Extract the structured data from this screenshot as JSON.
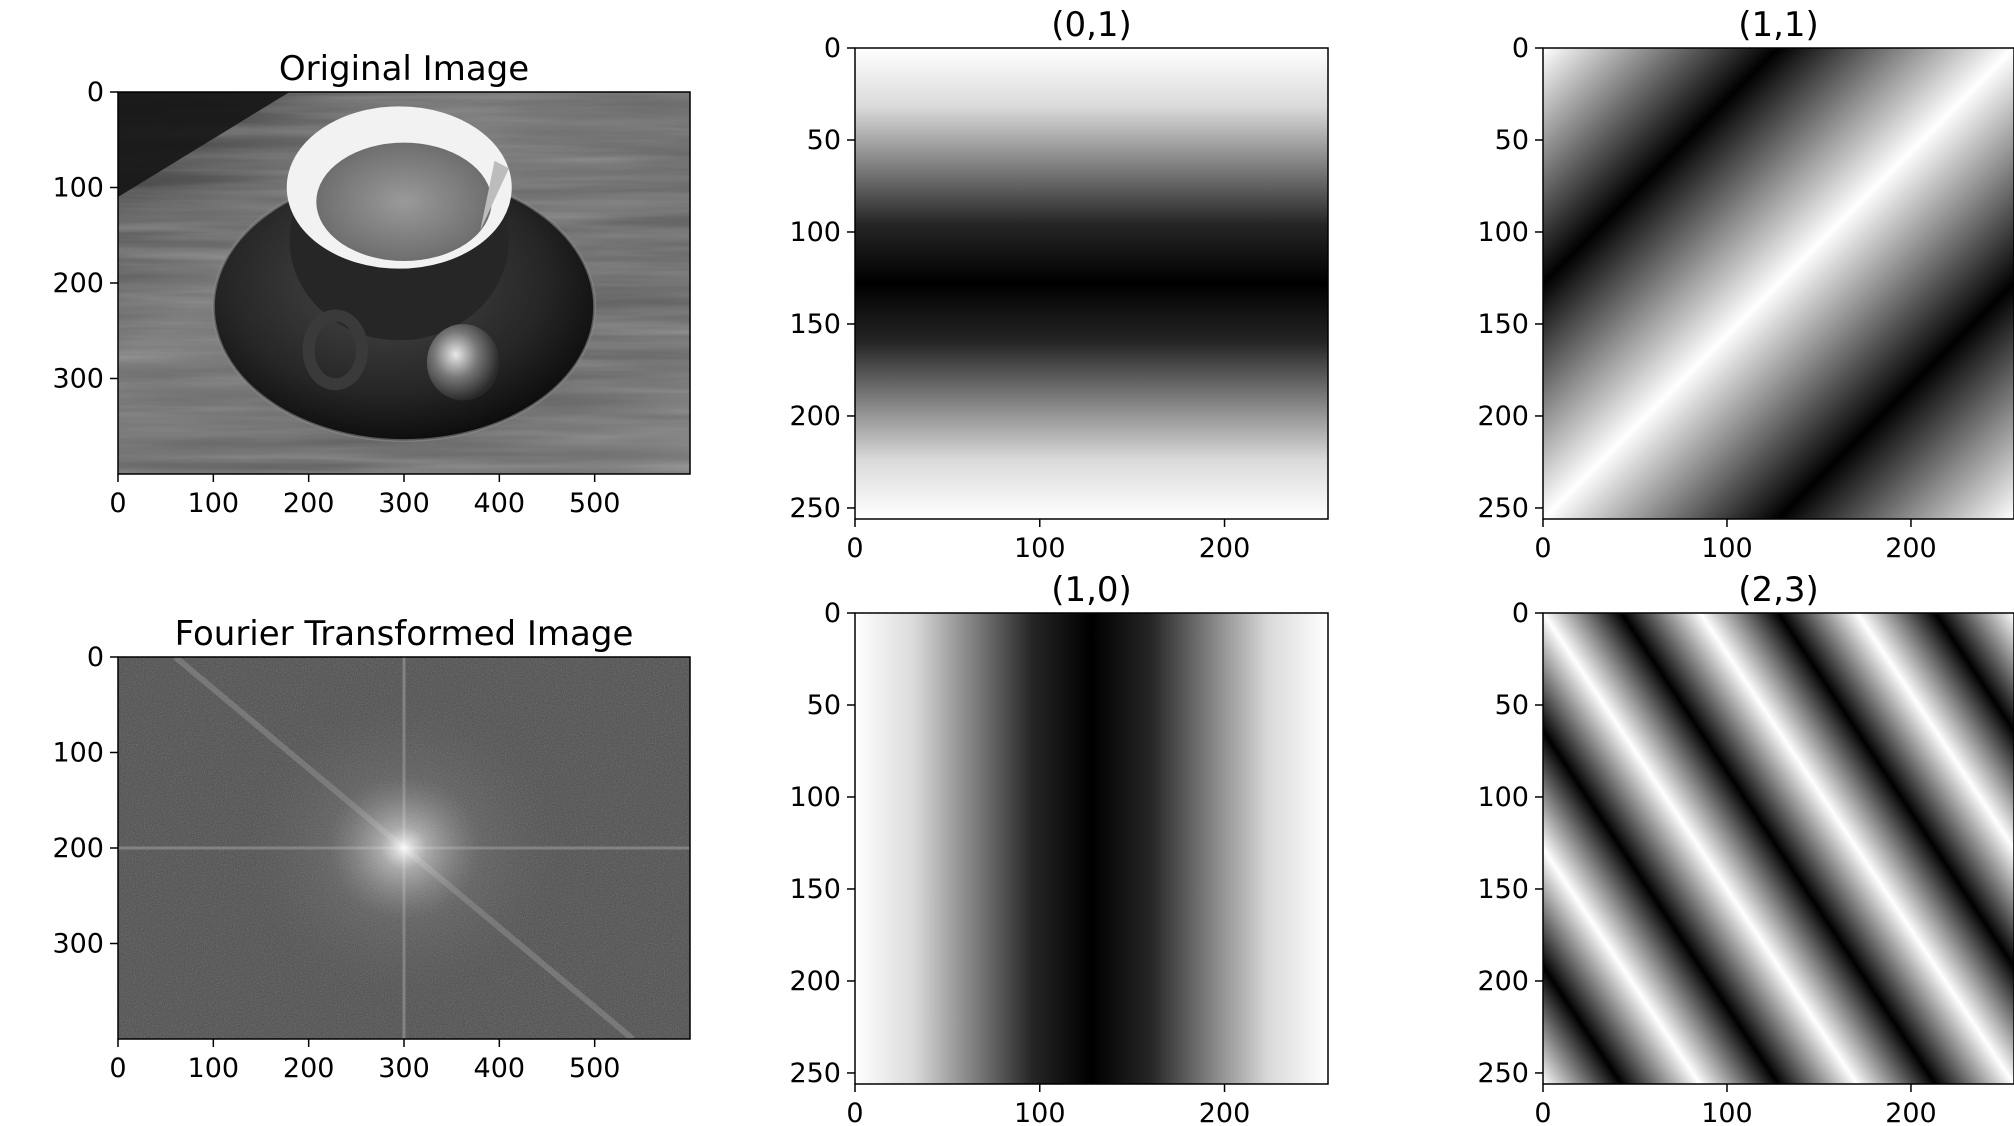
{
  "chart_data": [
    {
      "type": "image",
      "title": "Original Image",
      "content": "grayscale photo of a coffee cup on a saucer with a spoon on a wooden table",
      "colormap": "gray",
      "xlim": [
        0,
        600
      ],
      "ylim": [
        400,
        0
      ],
      "xticks": [
        0,
        100,
        200,
        300,
        400,
        500
      ],
      "yticks": [
        0,
        100,
        200,
        300
      ]
    },
    {
      "type": "heatmap",
      "title": "(0,1)",
      "colormap": "gray",
      "frequency": [
        0,
        1
      ],
      "xlim": [
        0,
        256
      ],
      "ylim": [
        256,
        0
      ],
      "xticks": [
        0,
        100,
        200
      ],
      "yticks": [
        0,
        50,
        100,
        150,
        200,
        250
      ]
    },
    {
      "type": "heatmap",
      "title": "(1,1)",
      "colormap": "gray",
      "frequency": [
        1,
        1
      ],
      "xlim": [
        0,
        256
      ],
      "ylim": [
        256,
        0
      ],
      "xticks": [
        0,
        100,
        200
      ],
      "yticks": [
        0,
        50,
        100,
        150,
        200,
        250
      ]
    },
    {
      "type": "image",
      "title": "Fourier Transformed Image",
      "content": "log-magnitude spectrum, bright center at (300,200) with horizontal and vertical axis lines and a diagonal streak",
      "colormap": "gray",
      "xlim": [
        0,
        600
      ],
      "ylim": [
        400,
        0
      ],
      "xticks": [
        0,
        100,
        200,
        300,
        400,
        500
      ],
      "yticks": [
        0,
        100,
        200,
        300
      ]
    },
    {
      "type": "heatmap",
      "title": "(1,0)",
      "colormap": "gray",
      "frequency": [
        1,
        0
      ],
      "xlim": [
        0,
        256
      ],
      "ylim": [
        256,
        0
      ],
      "xticks": [
        0,
        100,
        200
      ],
      "yticks": [
        0,
        50,
        100,
        150,
        200,
        250
      ]
    },
    {
      "type": "heatmap",
      "title": "(2,3)",
      "colormap": "gray",
      "frequency": [
        2,
        3
      ],
      "xlim": [
        0,
        256
      ],
      "ylim": [
        256,
        0
      ],
      "xticks": [
        0,
        100,
        200
      ],
      "yticks": [
        0,
        50,
        100,
        150,
        200,
        250
      ]
    }
  ]
}
